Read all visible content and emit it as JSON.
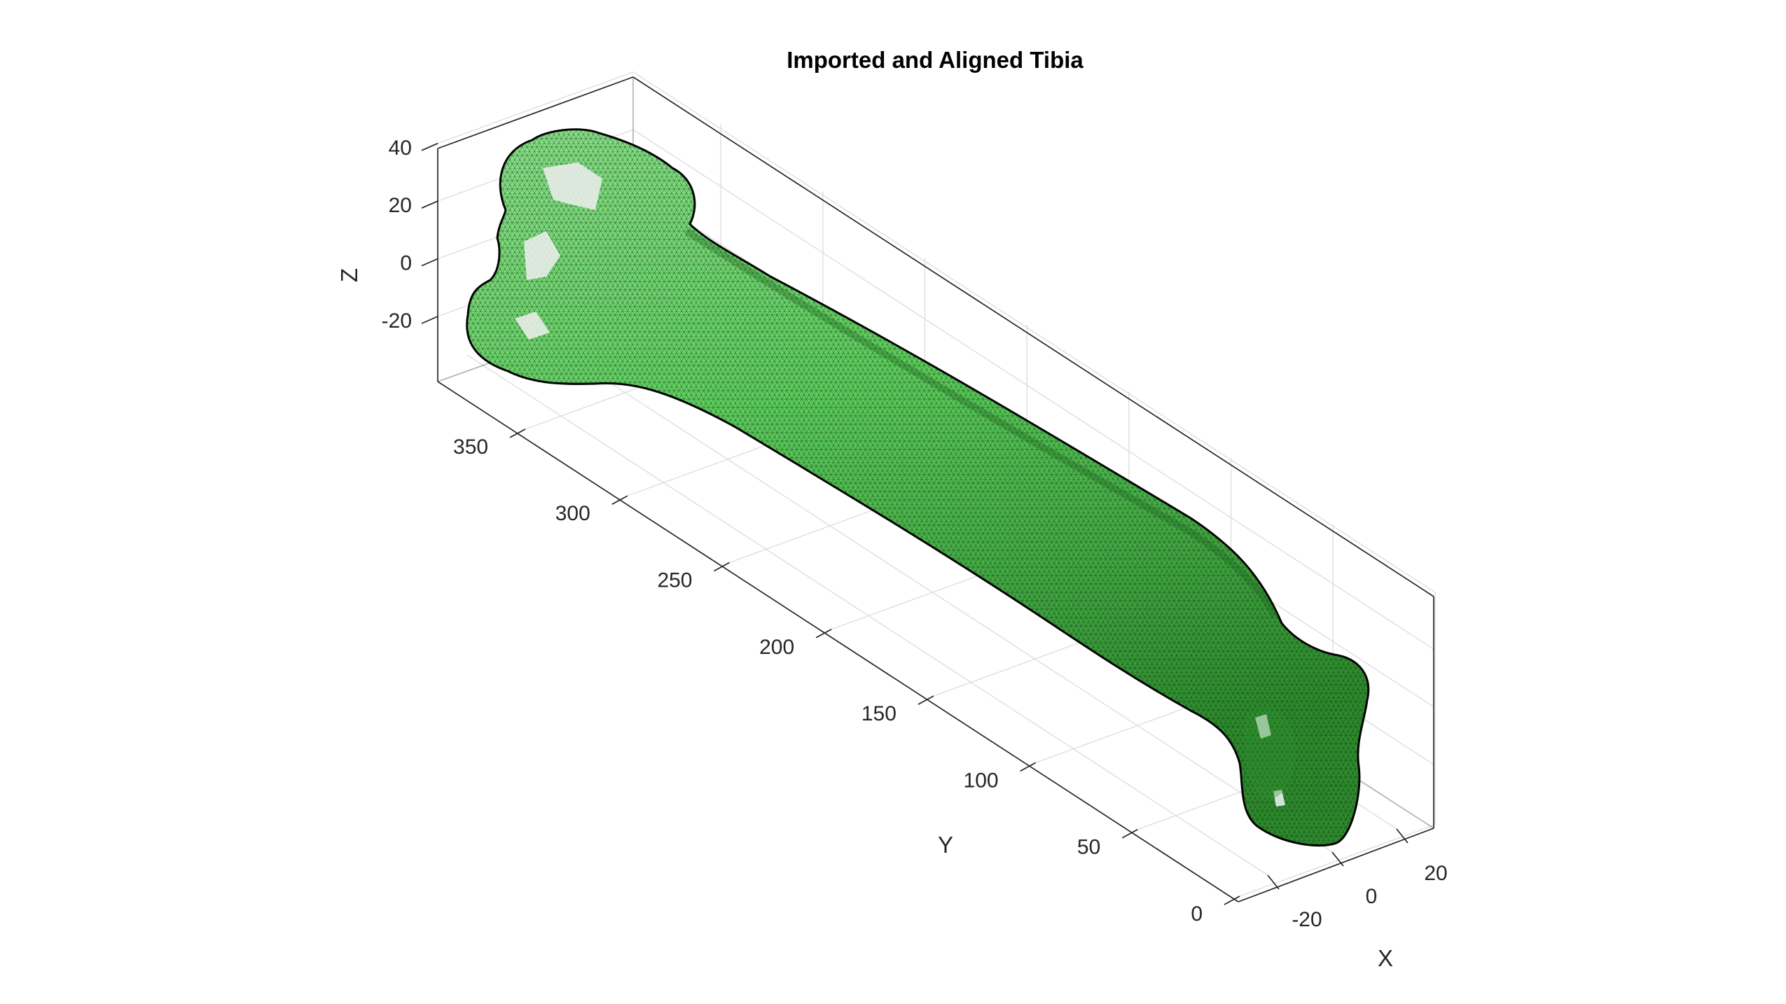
{
  "chart_data": {
    "type": "surface-mesh-3d",
    "title": "Imported and Aligned Tibia",
    "xlabel": "X",
    "ylabel": "Y",
    "zlabel": "Z",
    "x_ticks": [
      -20,
      0,
      20
    ],
    "y_ticks": [
      0,
      50,
      100,
      150,
      200,
      250,
      300,
      350
    ],
    "z_ticks": [
      -20,
      0,
      20,
      40
    ],
    "xlim": [
      -40,
      40
    ],
    "ylim": [
      -10,
      390
    ],
    "zlim": [
      -40,
      45
    ],
    "grid": true,
    "box": true,
    "colors": {
      "face": "#5fd35f",
      "face_light": "#8fe68f",
      "face_dark": "#2e8f2e",
      "edge": "#0f2a0f",
      "highlight_patch": "#e9ece9",
      "axis": "#262626",
      "grid": "#dcdcdc"
    }
  }
}
